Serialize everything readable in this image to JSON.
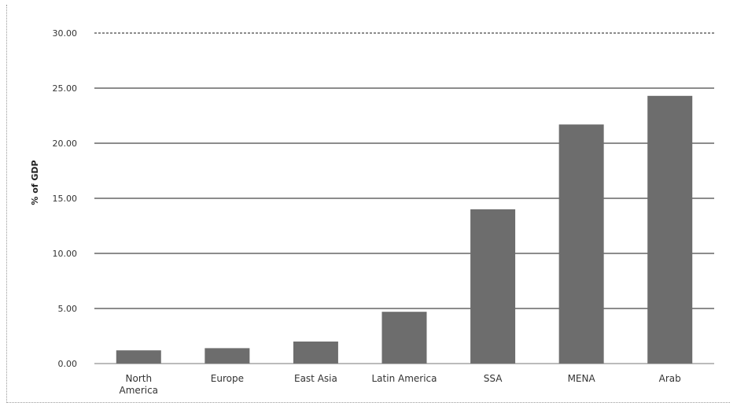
{
  "chart_data": {
    "type": "bar",
    "categories": [
      "North America",
      "Europe",
      "East Asia",
      "Latin America",
      "SSA",
      "MENA",
      "Arab"
    ],
    "category_lines": [
      [
        "North",
        "America"
      ],
      [
        "Europe"
      ],
      [
        "East Asia"
      ],
      [
        "Latin America"
      ],
      [
        "SSA"
      ],
      [
        "MENA"
      ],
      [
        "Arab"
      ]
    ],
    "values": [
      1.2,
      1.4,
      2.0,
      4.7,
      14.0,
      21.7,
      24.3
    ],
    "ylabel": "% of GDP",
    "ylim": [
      0,
      30
    ],
    "yticks": [
      "0.00",
      "5.00",
      "10.00",
      "15.00",
      "20.00",
      "25.00",
      "30.00"
    ],
    "grid": true,
    "bar_color": "#6d6d6d",
    "grid_color": "#1a1a1a"
  }
}
